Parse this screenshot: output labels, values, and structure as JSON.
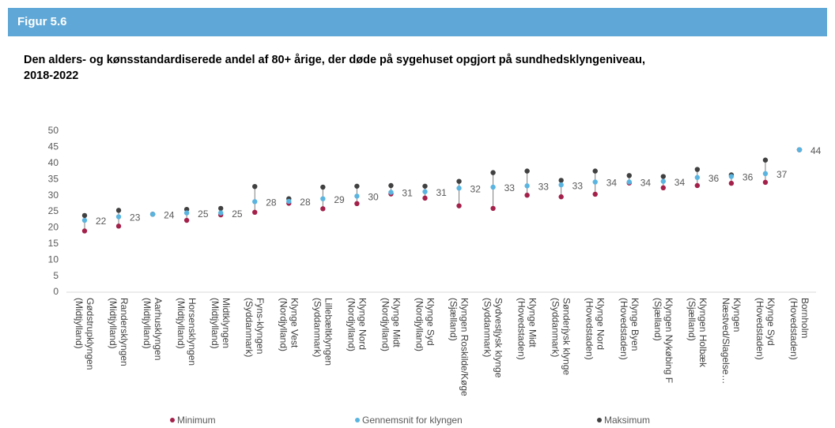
{
  "header": {
    "label": "Figur 5.6"
  },
  "chart_data": {
    "type": "dot",
    "title": "Den alders- og kønsstandardiserede andel af 80+ årige, der døde på sygehuset opgjort på sundhedsklyngeniveau, 2018-2022",
    "categories": [
      "Gødstrupklyngen (Midtjylland)",
      "Randersklyngen (Midtjylland)",
      "Aarhusklyngen (Midtjylland)",
      "Horsensklyngen (Midtjylland)",
      "Midtklyngen (Midtjylland)",
      "Fyns-klyngen (Syddanmark)",
      "Klynge Vest (Nordjylland)",
      "Lillebæltklyngen (Syddanmark)",
      "Klynge Nord (Nordjylland)",
      "Klynge Midt (Nordjylland)",
      "Klynge Syd (Nordjylland)",
      "Klyngen Roskilde/Køge (Sjælland)",
      "Sydvestjysk klynge (Syddanmark)",
      "Klynge Midt (Hovedstaden)",
      "Sønderjysk klynge (Syddanmark)",
      "Klynge Nord (Hovedstaden)",
      "Klynge Byen (Hovedstaden)",
      "Klyngen Nykøbing F (Sjælland)",
      "Klyngen Holbæk (Sjælland)",
      "Klyngen Næstved/Slagelse…",
      "Klynge Syd (Hovedstaden)",
      "Bornholm (Hovedstaden)"
    ],
    "series": [
      {
        "name": "Minimum",
        "color": "#a3204a",
        "values": [
          19,
          20.5,
          24.2,
          22.3,
          24,
          24.8,
          27.6,
          25.9,
          27.5,
          30.5,
          29.2,
          26.8,
          26,
          30.1,
          29.6,
          30.4,
          33.9,
          32.4,
          33.1,
          33.8,
          34.1,
          44.2
        ]
      },
      {
        "name": "Gennemsnit for klyngen",
        "color": "#5ab4e0",
        "values": [
          22.3,
          23.4,
          24.2,
          24.6,
          24.6,
          28.1,
          28.2,
          29,
          29.8,
          31,
          31.2,
          32.3,
          32.6,
          33,
          33.3,
          34.2,
          34.2,
          34.4,
          35.6,
          35.9,
          36.8,
          44.2
        ],
        "value_labels": [
          "22",
          "23",
          "24",
          "25",
          "25",
          "28",
          "28",
          "29",
          "30",
          "31",
          "31",
          "32",
          "33",
          "33",
          "33",
          "34",
          "34",
          "34",
          "36",
          "36",
          "37",
          "44"
        ]
      },
      {
        "name": "Maksimum",
        "color": "#404040",
        "values": [
          23.8,
          25.4,
          24.2,
          25.7,
          26,
          32.8,
          29,
          32.6,
          32.9,
          33.1,
          32.9,
          34.4,
          37.1,
          37.6,
          34.7,
          37.6,
          36.2,
          35.9,
          38.1,
          36.4,
          41,
          44.2
        ]
      }
    ],
    "ylim": [
      0,
      50
    ],
    "yticks": [
      0,
      5,
      10,
      15,
      20,
      25,
      30,
      35,
      40,
      45,
      50
    ],
    "legend": "bottom"
  }
}
